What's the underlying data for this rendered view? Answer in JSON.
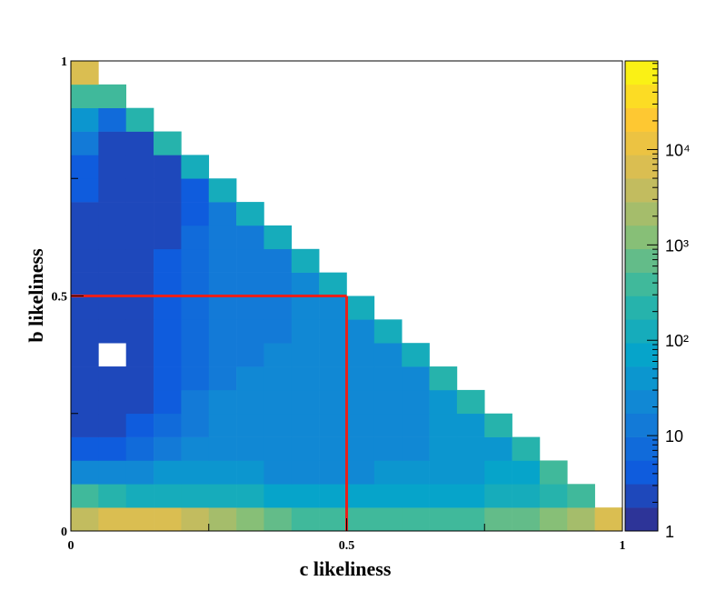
{
  "chart_data": {
    "type": "heatmap",
    "xlabel": "c likeliness",
    "ylabel": "b likeliness",
    "xlim": [
      0,
      1
    ],
    "ylim": [
      0,
      1
    ],
    "xticks": [
      0,
      0.5,
      1
    ],
    "yticks": [
      0,
      0.5,
      1
    ],
    "xminor_ticks": [
      0.25,
      0.75
    ],
    "yminor_ticks": [
      0.25,
      0.75
    ],
    "zlim": [
      1,
      85000
    ],
    "zlog": true,
    "zticks": [
      1,
      10,
      {
        "value": 100,
        "label": "10²"
      },
      {
        "value": 1000,
        "label": "10³"
      },
      {
        "value": 10000,
        "label": "10⁴"
      }
    ],
    "colormap": [
      "#352a87",
      "#0f5cdd",
      "#1481d6",
      "#06a4ca",
      "#2eb7a4",
      "#87bf77",
      "#d1bb59",
      "#fec832",
      "#f9fb0e"
    ],
    "x_bins": [
      0,
      0.05,
      0.1,
      0.15,
      0.2,
      0.25,
      0.3,
      0.35,
      0.4,
      0.45,
      0.5,
      0.55,
      0.6,
      0.65,
      0.7,
      0.75,
      0.8,
      0.85,
      0.9,
      0.95,
      1
    ],
    "y_bins": [
      0,
      0.05,
      0.1,
      0.15,
      0.2,
      0.25,
      0.3,
      0.35,
      0.4,
      0.45,
      0.5,
      0.55,
      0.6,
      0.65,
      0.7,
      0.75,
      0.8,
      0.85,
      0.9,
      0.95,
      1
    ],
    "z": [
      [
        3000,
        8000,
        8000,
        6000,
        4000,
        2000,
        1000,
        700,
        500,
        400,
        400,
        400,
        400,
        500,
        500,
        600,
        800,
        1000,
        2000,
        5000
      ],
      [
        300,
        200,
        150,
        150,
        150,
        120,
        100,
        80,
        70,
        60,
        60,
        60,
        70,
        80,
        90,
        100,
        150,
        200,
        500,
        null
      ],
      [
        30,
        20,
        30,
        40,
        50,
        40,
        35,
        30,
        30,
        30,
        30,
        35,
        40,
        45,
        50,
        60,
        80,
        300,
        null,
        null
      ],
      [
        5,
        4,
        6,
        10,
        20,
        25,
        25,
        25,
        25,
        25,
        25,
        30,
        30,
        35,
        40,
        50,
        250,
        null,
        null,
        null
      ],
      [
        3,
        3,
        4,
        6,
        12,
        20,
        22,
        22,
        22,
        22,
        25,
        25,
        30,
        35,
        40,
        200,
        null,
        null,
        null,
        null
      ],
      [
        2,
        2,
        3,
        5,
        10,
        18,
        20,
        20,
        20,
        22,
        22,
        25,
        30,
        35,
        180,
        null,
        null,
        null,
        null,
        null
      ],
      [
        2,
        2,
        3,
        5,
        9,
        15,
        18,
        18,
        20,
        20,
        22,
        25,
        30,
        170,
        null,
        null,
        null,
        null,
        null,
        null
      ],
      [
        2,
        null,
        3,
        4,
        8,
        14,
        17,
        18,
        18,
        20,
        22,
        25,
        160,
        null,
        null,
        null,
        null,
        null,
        null,
        null
      ],
      [
        2,
        2,
        3,
        4,
        7,
        13,
        16,
        17,
        18,
        20,
        22,
        150,
        null,
        null,
        null,
        null,
        null,
        null,
        null,
        null
      ],
      [
        2,
        2,
        3,
        4,
        7,
        12,
        15,
        17,
        18,
        20,
        150,
        null,
        null,
        null,
        null,
        null,
        null,
        null,
        null,
        null
      ],
      [
        3,
        2,
        3,
        4,
        6,
        12,
        15,
        17,
        18,
        150,
        null,
        null,
        null,
        null,
        null,
        null,
        null,
        null,
        null,
        null
      ],
      [
        3,
        2,
        2,
        4,
        6,
        11,
        14,
        16,
        150,
        null,
        null,
        null,
        null,
        null,
        null,
        null,
        null,
        null,
        null,
        null
      ],
      [
        3,
        2,
        2,
        3,
        6,
        10,
        14,
        150,
        null,
        null,
        null,
        null,
        null,
        null,
        null,
        null,
        null,
        null,
        null,
        null
      ],
      [
        3,
        2,
        2,
        3,
        5,
        10,
        150,
        null,
        null,
        null,
        null,
        null,
        null,
        null,
        null,
        null,
        null,
        null,
        null,
        null
      ],
      [
        4,
        2,
        2,
        3,
        5,
        150,
        null,
        null,
        null,
        null,
        null,
        null,
        null,
        null,
        null,
        null,
        null,
        null,
        null,
        null
      ],
      [
        5,
        2,
        2,
        3,
        160,
        null,
        null,
        null,
        null,
        null,
        null,
        null,
        null,
        null,
        null,
        null,
        null,
        null,
        null,
        null
      ],
      [
        10,
        3,
        3,
        180,
        null,
        null,
        null,
        null,
        null,
        null,
        null,
        null,
        null,
        null,
        null,
        null,
        null,
        null,
        null,
        null
      ],
      [
        40,
        6,
        200,
        null,
        null,
        null,
        null,
        null,
        null,
        null,
        null,
        null,
        null,
        null,
        null,
        null,
        null,
        null,
        null,
        null
      ],
      [
        300,
        300,
        null,
        null,
        null,
        null,
        null,
        null,
        null,
        null,
        null,
        null,
        null,
        null,
        null,
        null,
        null,
        null,
        null,
        null
      ],
      [
        5000,
        null,
        null,
        null,
        null,
        null,
        null,
        null,
        null,
        null,
        null,
        null,
        null,
        null,
        null,
        null,
        null,
        null,
        null,
        null
      ]
    ],
    "cut": {
      "x": 0.5,
      "y": 0.5,
      "color": "#e8201b"
    }
  }
}
